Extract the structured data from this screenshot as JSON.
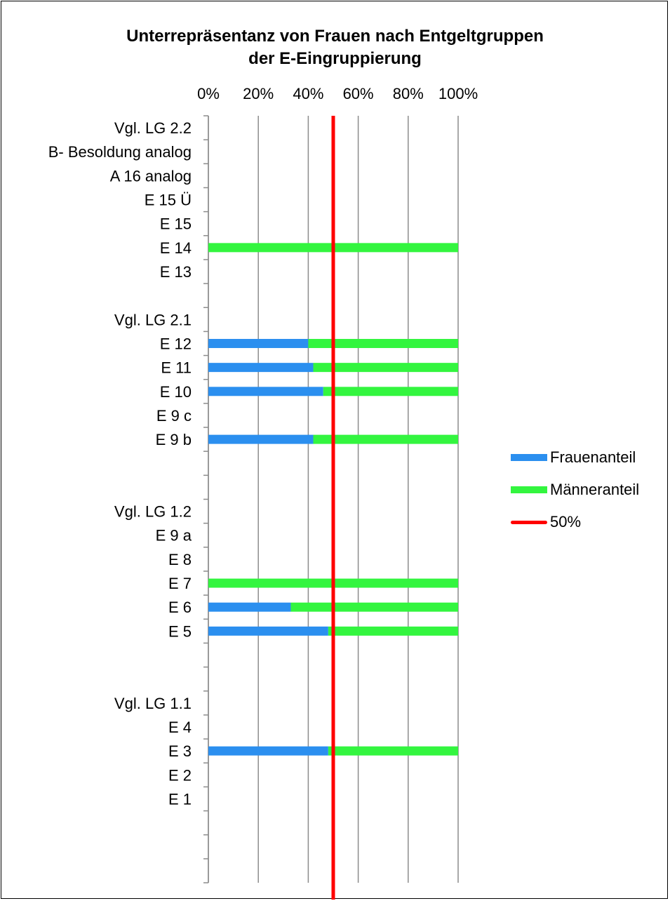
{
  "chart_data": {
    "type": "bar",
    "orientation": "horizontal",
    "stacked": true,
    "title": "Unterrepräsentanz von Frauen nach Entgeltgruppen der E-Eingruppierung",
    "title_lines": [
      "Unterrepräsentanz von Frauen nach Entgeltgruppen",
      "der E-Eingruppierung"
    ],
    "x_tick_labels": [
      "0%",
      "20%",
      "40%",
      "60%",
      "80%",
      "100%"
    ],
    "xlim": [
      0,
      100
    ],
    "grid": "vertical",
    "legend_position": "right",
    "categories": [
      "Vgl. LG 2.2",
      "B- Besoldung analog",
      "A 16 analog",
      "E 15 Ü",
      "E 15",
      "E 14",
      "E 13",
      "",
      "Vgl. LG 2.1",
      "E 12",
      "E 11",
      "E 10",
      "E 9 c",
      "E 9 b",
      "",
      "",
      "Vgl. LG 1.2",
      "E 9 a",
      "E 8",
      "E 7",
      "E 6",
      "E 5",
      "",
      "",
      "Vgl. LG 1.1",
      "E 4",
      "E 3",
      "E 2",
      "E 1",
      "",
      "",
      ""
    ],
    "series": [
      {
        "name": "Frauenanteil",
        "color": "#2b8fef",
        "values": [
          null,
          null,
          null,
          null,
          null,
          0,
          null,
          null,
          null,
          40,
          42,
          46,
          null,
          42,
          null,
          null,
          null,
          null,
          null,
          0,
          33,
          48,
          null,
          null,
          null,
          null,
          48,
          null,
          null,
          null,
          null,
          null
        ]
      },
      {
        "name": "Männeranteil",
        "color": "#33f53f",
        "values": [
          null,
          null,
          null,
          null,
          null,
          100,
          null,
          null,
          null,
          60,
          58,
          54,
          null,
          58,
          null,
          null,
          null,
          null,
          null,
          100,
          67,
          52,
          null,
          null,
          null,
          null,
          52,
          null,
          null,
          null,
          null,
          null
        ]
      }
    ],
    "reference_line": {
      "name": "50%",
      "value": 50,
      "color": "#ff0000"
    }
  }
}
